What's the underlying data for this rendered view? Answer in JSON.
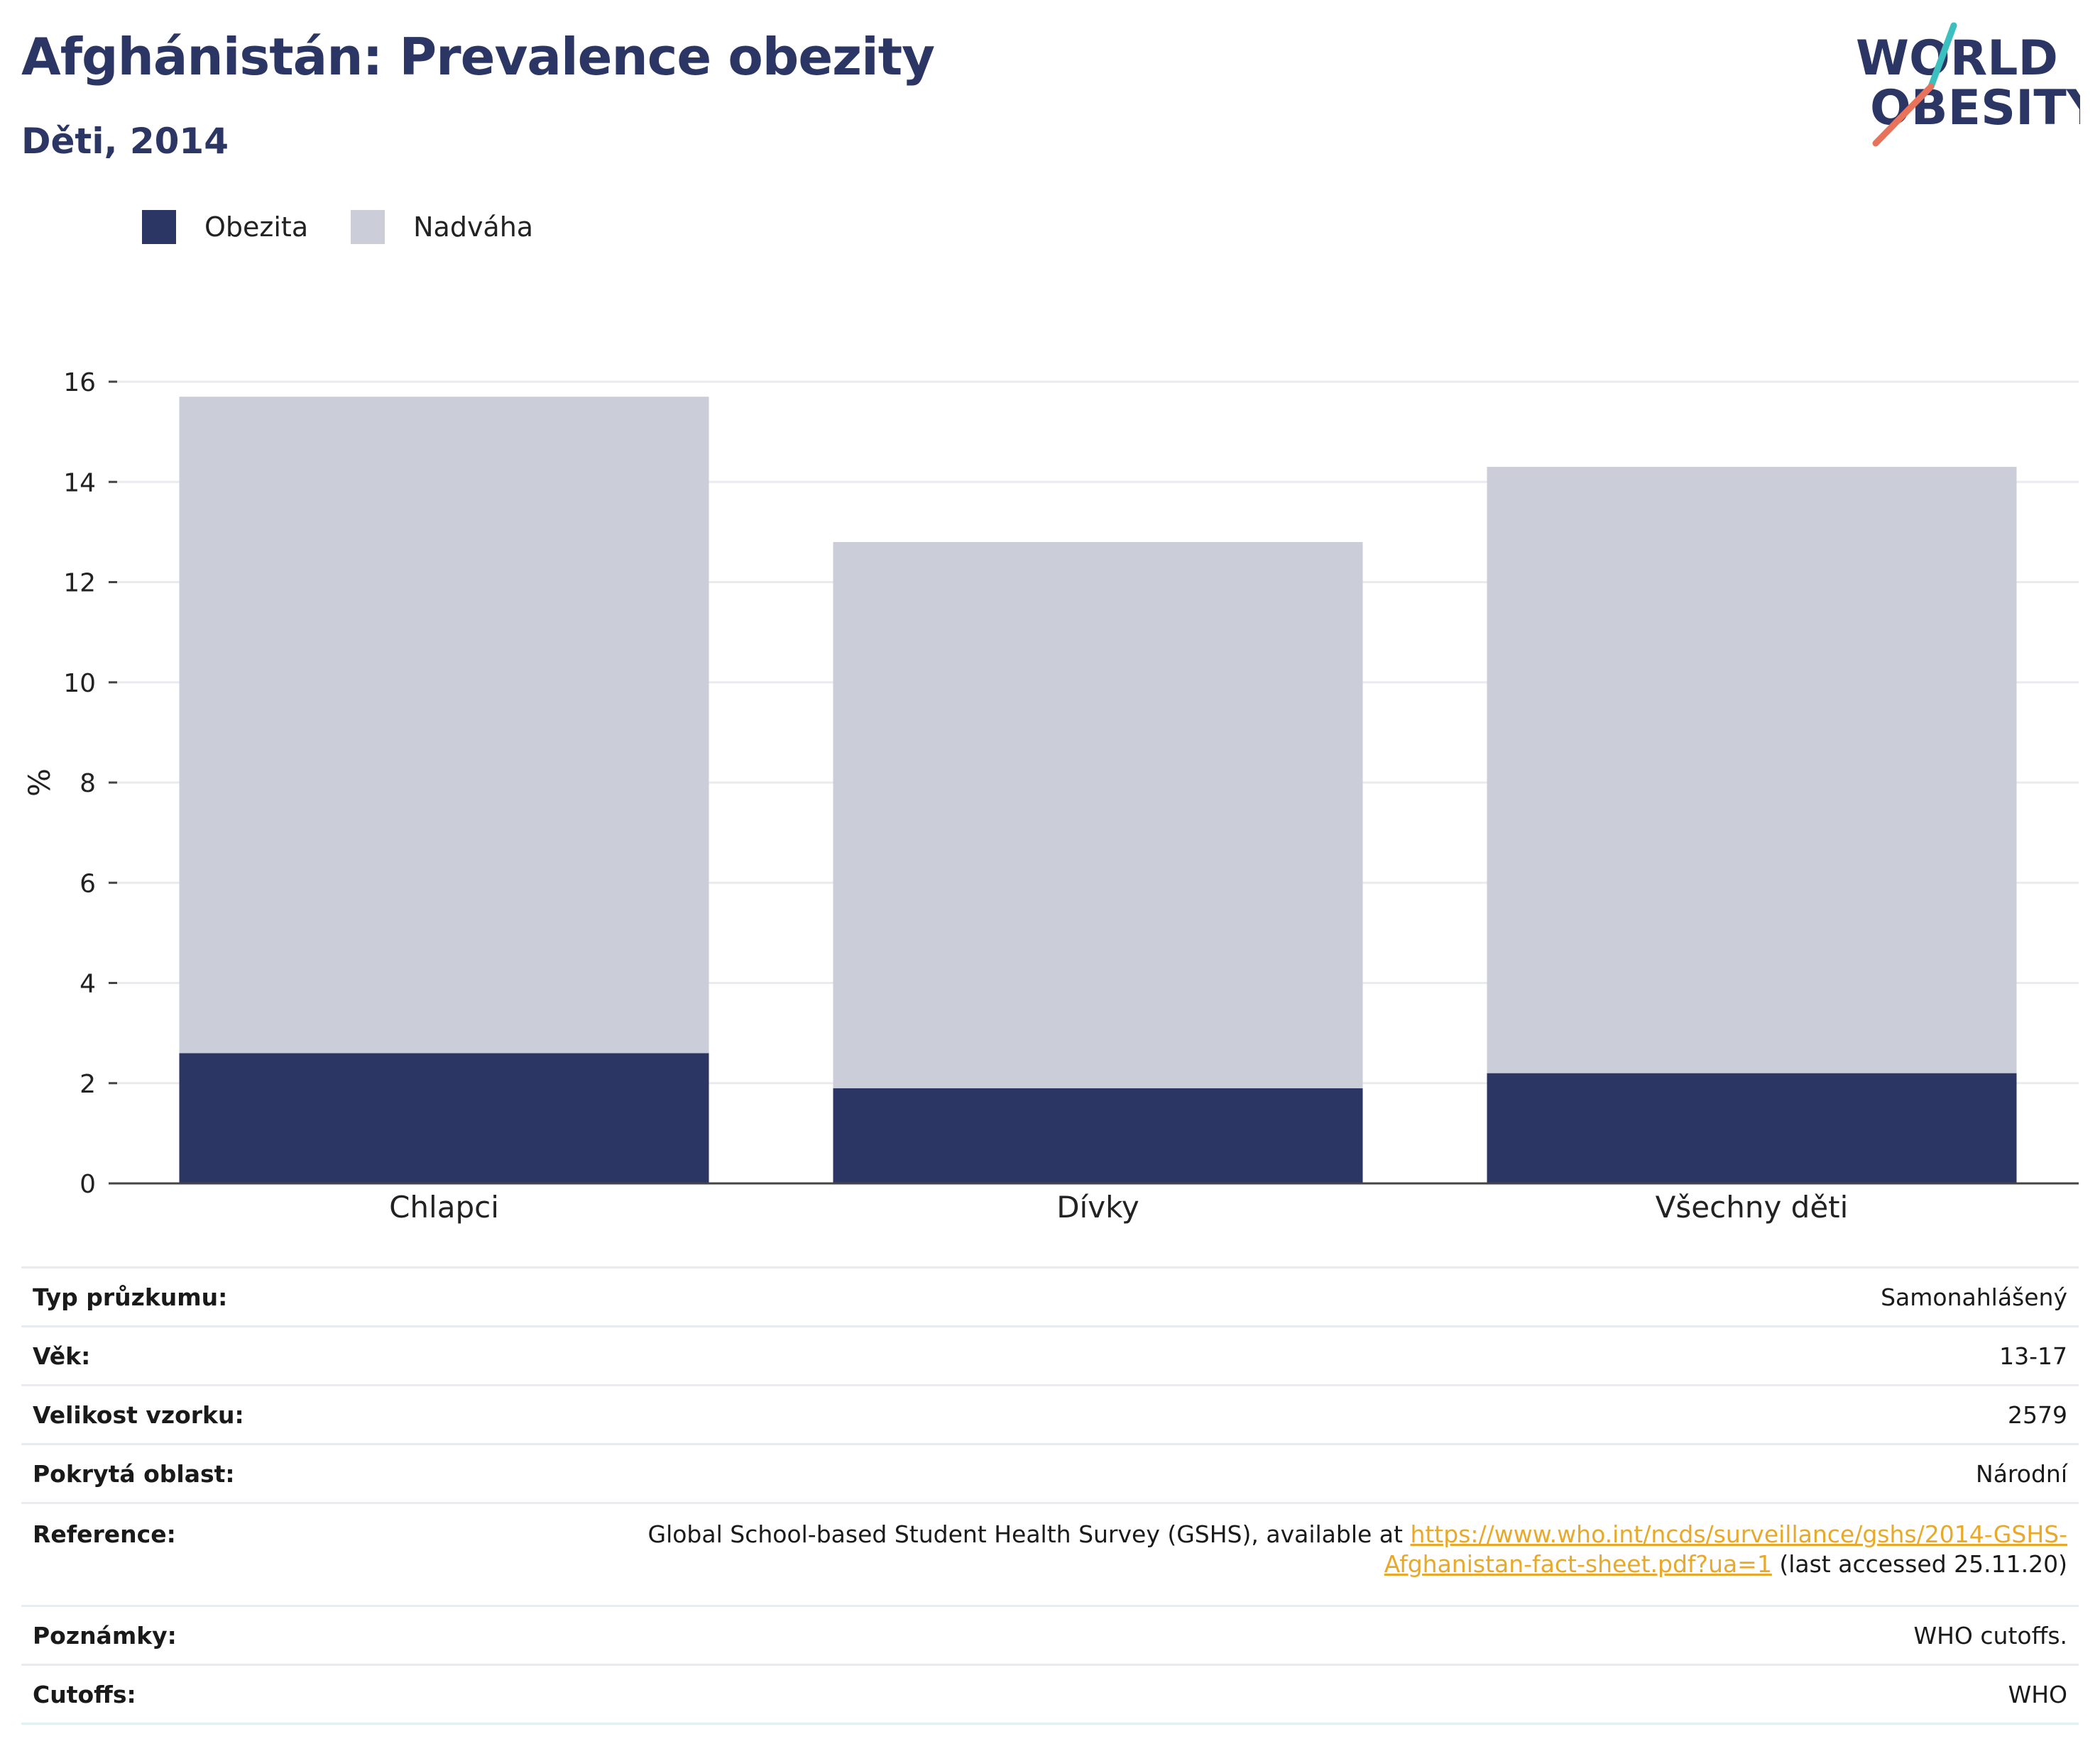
{
  "header": {
    "title": "Afghánistán: Prevalence obezity",
    "subtitle": "Děti, 2014",
    "logo_line1": "WORLD",
    "logo_line2": "OBESITY"
  },
  "colors": {
    "obesity": "#2b3664",
    "overweight": "#cbcdd8",
    "accent_teal": "#3bbfbf",
    "accent_coral": "#e8735a",
    "link": "#e8a92a"
  },
  "chart_data": {
    "type": "bar",
    "stacked": true,
    "categories": [
      "Chlapci",
      "Dívky",
      "Všechny děti"
    ],
    "series": [
      {
        "name": "Obezita",
        "values": [
          2.6,
          1.9,
          2.2
        ]
      },
      {
        "name": "Nadváha",
        "values": [
          13.1,
          10.9,
          12.1
        ]
      }
    ],
    "ylabel": "%",
    "ylim": [
      0,
      16
    ],
    "yticks": [
      0,
      2,
      4,
      6,
      8,
      10,
      12,
      14,
      16
    ],
    "grid": true,
    "legend": "top-left"
  },
  "meta": [
    {
      "key": "Typ průzkumu:",
      "value": "Samonahlášený"
    },
    {
      "key": "Věk:",
      "value": "13-17"
    },
    {
      "key": "Velikost vzorku:",
      "value": "2579"
    },
    {
      "key": "Pokrytá oblast:",
      "value": "Národní"
    },
    {
      "key": "Reference:",
      "value_prefix": "Global School-based Student Health Survey (GSHS), available at ",
      "link": "https://www.who.int/ncds/surveillance/gshs/2014-GSHS-Afghanistan-fact-sheet.pdf?ua=1",
      "value_suffix": " (last accessed 25.11.20)"
    },
    {
      "key": "Poznámky:",
      "value": "WHO cutoffs."
    },
    {
      "key": "Cutoffs:",
      "value": "WHO"
    }
  ]
}
